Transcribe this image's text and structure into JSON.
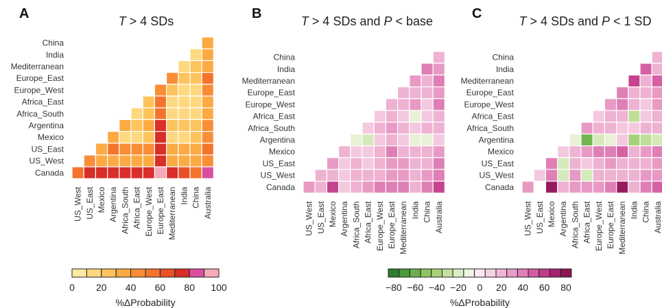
{
  "chart_data": [
    {
      "type": "heatmap",
      "panel": "A",
      "title_parts": [
        {
          "t": "T",
          "i": true
        },
        {
          "t": " > 4 SDs"
        }
      ],
      "row_labels": [
        "China",
        "India",
        "Mediterranean",
        "Europe_East",
        "Europe_West",
        "Africa_East",
        "Africa_South",
        "Argentina",
        "Mexico",
        "US_East",
        "US_West",
        "Canada"
      ],
      "col_labels": [
        "US_West",
        "US_East",
        "Mexico",
        "Argentina",
        "Africa_South",
        "Africa_East",
        "Europe_West",
        "Europe_East",
        "Mediterranean",
        "India",
        "China",
        "Australia"
      ],
      "values": [
        [
          null,
          null,
          null,
          null,
          null,
          null,
          null,
          null,
          null,
          null,
          null,
          35
        ],
        [
          null,
          null,
          null,
          null,
          null,
          null,
          null,
          null,
          null,
          null,
          15,
          35
        ],
        [
          null,
          null,
          null,
          null,
          null,
          null,
          null,
          null,
          null,
          15,
          25,
          35
        ],
        [
          null,
          null,
          null,
          null,
          null,
          null,
          null,
          null,
          45,
          25,
          25,
          55
        ],
        [
          null,
          null,
          null,
          null,
          null,
          null,
          null,
          45,
          25,
          15,
          15,
          45
        ],
        [
          null,
          null,
          null,
          null,
          null,
          null,
          25,
          55,
          15,
          15,
          15,
          35
        ],
        [
          null,
          null,
          null,
          null,
          null,
          15,
          25,
          55,
          15,
          15,
          15,
          35
        ],
        [
          null,
          null,
          null,
          null,
          35,
          25,
          35,
          75,
          25,
          25,
          25,
          45
        ],
        [
          null,
          null,
          null,
          35,
          15,
          15,
          25,
          75,
          15,
          15,
          25,
          45
        ],
        [
          null,
          null,
          35,
          55,
          45,
          45,
          45,
          75,
          35,
          35,
          35,
          55
        ],
        [
          null,
          45,
          35,
          35,
          35,
          35,
          35,
          75,
          35,
          35,
          35,
          45
        ],
        [
          55,
          75,
          75,
          75,
          75,
          75,
          75,
          95,
          75,
          65,
          55,
          85
        ]
      ],
      "colorbar": {
        "ticks": [
          "0",
          "20",
          "40",
          "60",
          "80",
          "100"
        ],
        "label": "%ΔProbability",
        "colors": [
          "#feeaa2",
          "#fed87f",
          "#fdc35d",
          "#fcaa44",
          "#f98e36",
          "#f4742d",
          "#e85127",
          "#d82f2a",
          "#d94d9f",
          "#f6a9b9"
        ]
      }
    },
    {
      "type": "heatmap",
      "panel": "B",
      "title_parts": [
        {
          "t": "T",
          "i": true
        },
        {
          "t": " > 4 SDs and "
        },
        {
          "t": "P",
          "i": true
        },
        {
          "t": " < base"
        }
      ],
      "row_labels": [
        "China",
        "India",
        "Mediterranean",
        "Europe_East",
        "Europe_West",
        "Africa_East",
        "Africa_South",
        "Argentina",
        "Mexico",
        "US_East",
        "US_West",
        "Canada"
      ],
      "col_labels": [
        "US_West",
        "US_East",
        "Mexico",
        "Argentina",
        "Africa_South",
        "Africa_East",
        "Europe_West",
        "Europe_East",
        "Mediterranean",
        "India",
        "China",
        "Australia"
      ],
      "values": [
        [
          null,
          null,
          null,
          null,
          null,
          null,
          null,
          null,
          null,
          null,
          null,
          25
        ],
        [
          null,
          null,
          null,
          null,
          null,
          null,
          null,
          null,
          null,
          null,
          45,
          35
        ],
        [
          null,
          null,
          null,
          null,
          null,
          null,
          null,
          null,
          null,
          35,
          25,
          45
        ],
        [
          null,
          null,
          null,
          null,
          null,
          null,
          null,
          null,
          25,
          25,
          25,
          35
        ],
        [
          null,
          null,
          null,
          null,
          null,
          null,
          null,
          25,
          25,
          35,
          15,
          45
        ],
        [
          null,
          null,
          null,
          null,
          null,
          null,
          15,
          25,
          15,
          -15,
          15,
          25
        ],
        [
          null,
          null,
          null,
          null,
          null,
          15,
          25,
          35,
          25,
          15,
          25,
          25
        ],
        [
          null,
          null,
          null,
          null,
          -15,
          -25,
          15,
          25,
          15,
          -15,
          -15,
          15
        ],
        [
          null,
          null,
          null,
          25,
          15,
          15,
          25,
          45,
          25,
          25,
          25,
          35
        ],
        [
          null,
          null,
          35,
          15,
          25,
          15,
          25,
          35,
          35,
          25,
          25,
          45
        ],
        [
          null,
          25,
          25,
          15,
          25,
          25,
          25,
          35,
          35,
          25,
          35,
          45
        ],
        [
          35,
          25,
          65,
          15,
          25,
          35,
          45,
          45,
          45,
          25,
          45,
          65
        ]
      ]
    },
    {
      "type": "heatmap",
      "panel": "C",
      "title_parts": [
        {
          "t": "T",
          "i": true
        },
        {
          "t": " > 4 SDs and "
        },
        {
          "t": "P",
          "i": true
        },
        {
          "t": " < 1 SD"
        }
      ],
      "row_labels": [
        "China",
        "India",
        "Mediterranean",
        "Europe_East",
        "Europe_West",
        "Africa_East",
        "Africa_South",
        "Argentina",
        "Mexico",
        "US_East",
        "US_West",
        "Canada"
      ],
      "col_labels": [
        "US_West",
        "US_East",
        "Mexico",
        "Argentina",
        "Africa_South",
        "Africa_East",
        "Europe_West",
        "Europe_East",
        "Mediterranean",
        "India",
        "China",
        "Australia"
      ],
      "values": [
        [
          null,
          null,
          null,
          null,
          null,
          null,
          null,
          null,
          null,
          null,
          null,
          25
        ],
        [
          null,
          null,
          null,
          null,
          null,
          null,
          null,
          null,
          null,
          null,
          55,
          25
        ],
        [
          null,
          null,
          null,
          null,
          null,
          null,
          null,
          null,
          null,
          65,
          25,
          55
        ],
        [
          null,
          null,
          null,
          null,
          null,
          null,
          null,
          null,
          45,
          25,
          25,
          35
        ],
        [
          null,
          null,
          null,
          null,
          null,
          null,
          null,
          35,
          45,
          25,
          15,
          35
        ],
        [
          null,
          null,
          null,
          null,
          null,
          null,
          15,
          25,
          25,
          -35,
          15,
          25
        ],
        [
          null,
          null,
          null,
          null,
          null,
          35,
          25,
          25,
          15,
          15,
          25,
          25
        ],
        [
          null,
          null,
          null,
          null,
          -15,
          -65,
          -25,
          -15,
          15,
          -45,
          -35,
          -25
        ],
        [
          null,
          null,
          null,
          15,
          25,
          35,
          45,
          45,
          55,
          25,
          35,
          45
        ],
        [
          null,
          null,
          45,
          -25,
          25,
          15,
          25,
          35,
          25,
          25,
          25,
          35
        ],
        [
          null,
          15,
          45,
          -25,
          35,
          -25,
          25,
          25,
          25,
          25,
          35,
          35
        ],
        [
          35,
          null,
          85,
          25,
          35,
          35,
          35,
          45,
          85,
          25,
          45,
          55
        ]
      ],
      "colorbar": {
        "ticks": [
          "−80",
          "−60",
          "−40",
          "−20",
          "0",
          "20",
          "40",
          "60",
          "80"
        ],
        "label": "%ΔProbability",
        "colors": [
          "#2f7d32",
          "#4a9a3c",
          "#6bb04d",
          "#8dc460",
          "#a8d27a",
          "#c3e09d",
          "#dcecc3",
          "#eef4e0",
          "#fbe8f1",
          "#f6d2e5",
          "#f0b8d6",
          "#e99dc6",
          "#de7fb5",
          "#d45da2",
          "#c23b8b",
          "#a82270",
          "#8c1654"
        ]
      }
    }
  ]
}
